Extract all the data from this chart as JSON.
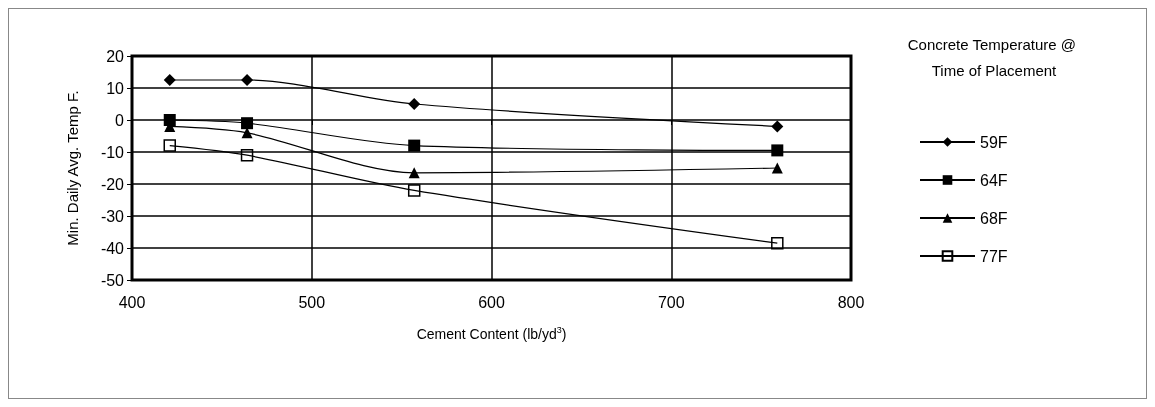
{
  "chart_data": {
    "type": "line",
    "xlabel": "Cement Content (lb/yd$^{3}$)",
    "ylabel": "Min. Daily Avg. Temp F.",
    "legend_title": "Concrete Temperature @ Time of Placement",
    "x": [
      421,
      464,
      557,
      759
    ],
    "series": [
      {
        "name": "59F",
        "color": "#000000",
        "marker": "diamond",
        "values": [
          12.5,
          12.5,
          5,
          -2
        ]
      },
      {
        "name": "64F",
        "color": "#000000",
        "marker": "square",
        "values": [
          0,
          -1,
          -8,
          -9.5
        ]
      },
      {
        "name": "68F",
        "color": "#000000",
        "marker": "triangle",
        "values": [
          -2,
          -4,
          -16.5,
          -15
        ]
      },
      {
        "name": "77F",
        "color": "#000000",
        "marker": "square-open",
        "values": [
          -8,
          -11,
          -22,
          -38.5
        ]
      }
    ],
    "xlim": [
      400,
      800
    ],
    "xticks": [
      400,
      500,
      600,
      700,
      800
    ],
    "ylim": [
      -50,
      20
    ],
    "yticks": [
      -50,
      -40,
      -30,
      -20,
      -10,
      0,
      10,
      20
    ],
    "grid": true,
    "legend": "right",
    "line_style": "solid"
  }
}
